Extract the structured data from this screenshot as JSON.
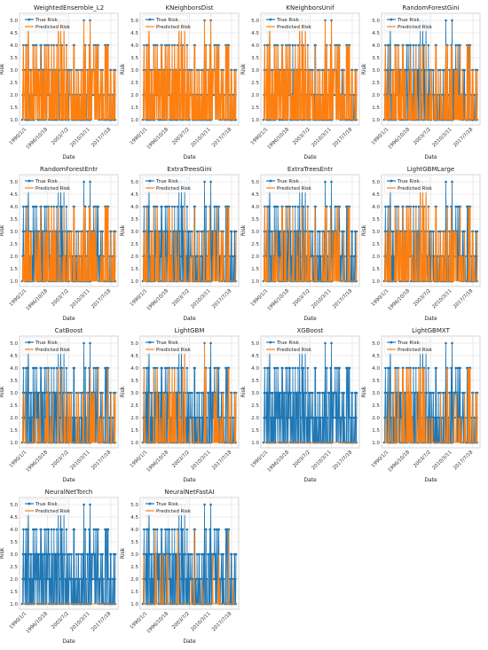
{
  "colors": {
    "true_risk": "#1f77b4",
    "predicted_risk": "#ff7f0e",
    "grid": "#dddddd",
    "panel_bg": "#ffffff",
    "frame": "#cccccc"
  },
  "legend": {
    "placement": "upper-left",
    "entries": [
      "True Risk",
      "Predicted Risk"
    ]
  },
  "shared": {
    "xlabel": "Date",
    "ylabel": "Risk",
    "y_ticks": [
      "1.0",
      "1.5",
      "2.0",
      "2.5",
      "3.0",
      "3.5",
      "4.0",
      "4.5",
      "5.0"
    ],
    "x_ticks": [
      "1990/1/1",
      "1996/10/18",
      "2003/7/2",
      "2010/3/11",
      "2017/7/18"
    ]
  },
  "chart_data": [
    {
      "type": "line",
      "title": "WeightedEnsemble_L2",
      "xlabel": "Date",
      "ylabel": "Risk",
      "ylim": [
        1.0,
        5.0
      ],
      "grid": true,
      "predicted_density": 0.95,
      "predicted_max": 5,
      "series": [
        {
          "name": "True Risk"
        },
        {
          "name": "Predicted Risk"
        }
      ]
    },
    {
      "type": "line",
      "title": "KNeighborsDist",
      "xlabel": "Date",
      "ylabel": "Risk",
      "ylim": [
        1.0,
        5.0
      ],
      "grid": true,
      "predicted_density": 1.0,
      "predicted_max": 5,
      "series": [
        {
          "name": "True Risk"
        },
        {
          "name": "Predicted Risk"
        }
      ]
    },
    {
      "type": "line",
      "title": "KNeighborsUnif",
      "xlabel": "Date",
      "ylabel": "Risk",
      "ylim": [
        1.0,
        5.0
      ],
      "grid": true,
      "predicted_density": 0.95,
      "predicted_max": 5,
      "series": [
        {
          "name": "True Risk"
        },
        {
          "name": "Predicted Risk"
        }
      ]
    },
    {
      "type": "line",
      "title": "RandomForestGini",
      "xlabel": "Date",
      "ylabel": "Risk",
      "ylim": [
        1.0,
        5.0
      ],
      "grid": true,
      "predicted_density": 0.55,
      "predicted_max": 4,
      "series": [
        {
          "name": "True Risk"
        },
        {
          "name": "Predicted Risk"
        }
      ]
    },
    {
      "type": "line",
      "title": "RandomForestEntr",
      "xlabel": "Date",
      "ylabel": "Risk",
      "ylim": [
        1.0,
        5.0
      ],
      "grid": true,
      "predicted_density": 0.55,
      "predicted_max": 4,
      "series": [
        {
          "name": "True Risk"
        },
        {
          "name": "Predicted Risk"
        }
      ]
    },
    {
      "type": "line",
      "title": "ExtraTreesGini",
      "xlabel": "Date",
      "ylabel": "Risk",
      "ylim": [
        1.0,
        5.0
      ],
      "grid": true,
      "predicted_density": 0.45,
      "predicted_max": 4,
      "series": [
        {
          "name": "True Risk"
        },
        {
          "name": "Predicted Risk"
        }
      ]
    },
    {
      "type": "line",
      "title": "ExtraTreesEntr",
      "xlabel": "Date",
      "ylabel": "Risk",
      "ylim": [
        1.0,
        5.0
      ],
      "grid": true,
      "predicted_density": 0.4,
      "predicted_max": 4,
      "series": [
        {
          "name": "True Risk"
        },
        {
          "name": "Predicted Risk"
        }
      ]
    },
    {
      "type": "line",
      "title": "LightGBMLarge",
      "xlabel": "Date",
      "ylabel": "Risk",
      "ylim": [
        1.0,
        5.0
      ],
      "grid": true,
      "predicted_density": 0.6,
      "predicted_max": 5,
      "series": [
        {
          "name": "True Risk"
        },
        {
          "name": "Predicted Risk"
        }
      ]
    },
    {
      "type": "line",
      "title": "CatBoost",
      "xlabel": "Date",
      "ylabel": "Risk",
      "ylim": [
        1.0,
        5.0
      ],
      "grid": true,
      "predicted_density": 0.3,
      "predicted_max": 4,
      "series": [
        {
          "name": "True Risk"
        },
        {
          "name": "Predicted Risk"
        }
      ]
    },
    {
      "type": "line",
      "title": "LightGBM",
      "xlabel": "Date",
      "ylabel": "Risk",
      "ylim": [
        1.0,
        5.0
      ],
      "grid": true,
      "predicted_density": 0.3,
      "predicted_max": 5,
      "series": [
        {
          "name": "True Risk"
        },
        {
          "name": "Predicted Risk"
        }
      ]
    },
    {
      "type": "line",
      "title": "XGBoost",
      "xlabel": "Date",
      "ylabel": "Risk",
      "ylim": [
        1.0,
        5.0
      ],
      "grid": true,
      "predicted_density": 0.0,
      "predicted_max": 1,
      "series": [
        {
          "name": "True Risk"
        },
        {
          "name": "Predicted Risk"
        }
      ]
    },
    {
      "type": "line",
      "title": "LightGBMXT",
      "xlabel": "Date",
      "ylabel": "Risk",
      "ylim": [
        1.0,
        5.0
      ],
      "grid": true,
      "predicted_density": 0.3,
      "predicted_max": 4,
      "series": [
        {
          "name": "True Risk"
        },
        {
          "name": "Predicted Risk"
        }
      ]
    },
    {
      "type": "line",
      "title": "NeuralNetTorch",
      "xlabel": "Date",
      "ylabel": "Risk",
      "ylim": [
        1.0,
        5.0
      ],
      "grid": true,
      "predicted_density": 0.0,
      "predicted_max": 1,
      "series": [
        {
          "name": "True Risk"
        },
        {
          "name": "Predicted Risk"
        }
      ]
    },
    {
      "type": "line",
      "title": "NeuralNetFastAI",
      "xlabel": "Date",
      "ylabel": "Risk",
      "ylim": [
        1.0,
        5.0
      ],
      "grid": true,
      "predicted_density": 0.12,
      "predicted_max": 4,
      "series": [
        {
          "name": "True Risk"
        },
        {
          "name": "Predicted Risk"
        }
      ]
    }
  ]
}
